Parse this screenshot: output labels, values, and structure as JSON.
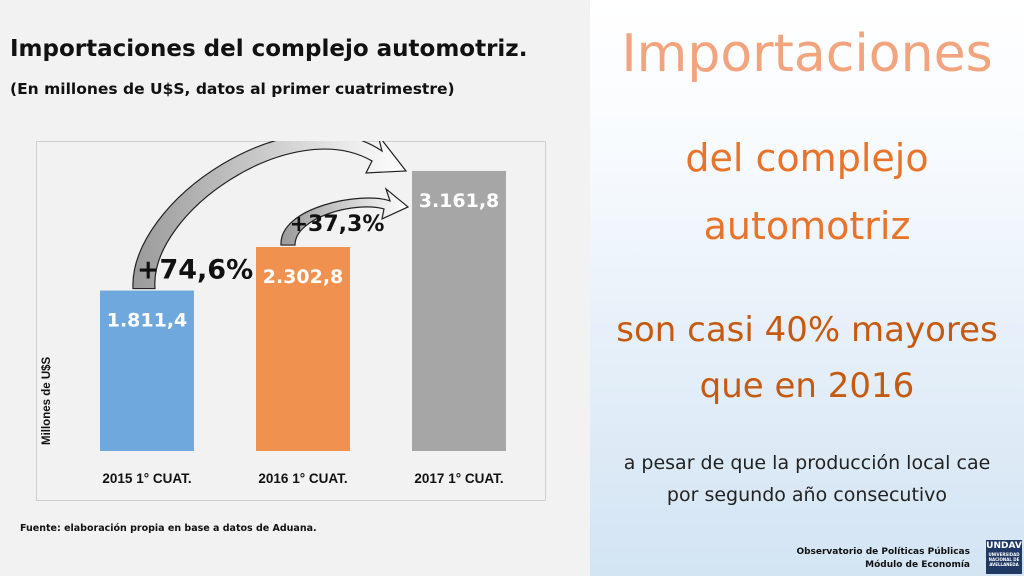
{
  "left": {
    "title": "Importaciones del complejo automotriz.",
    "subtitle": "(En millones de U$S, datos al primer cuatrimestre)",
    "source": "Fuente: elaboración propia en base a datos de Aduana."
  },
  "chart_data": {
    "type": "bar",
    "categories": [
      "2015 1° CUAT.",
      "2016 1° CUAT.",
      "2017 1° CUAT."
    ],
    "values": [
      1811.4,
      2302.8,
      3161.8
    ],
    "value_labels": [
      "1.811,4",
      "2.302,8",
      "3.161,8"
    ],
    "colors": [
      "#6fa8dc",
      "#f0914f",
      "#a6a6a6"
    ],
    "ylabel": "Millones de U$S",
    "ylim": [
      0,
      3500
    ],
    "grid": false,
    "annotations": [
      {
        "text": "+74,6%",
        "from": 0,
        "to": 2
      },
      {
        "text": "+37,3%",
        "from": 1,
        "to": 2
      }
    ]
  },
  "right": {
    "line1": "Importaciones",
    "line2": "del complejo",
    "line3": "automotriz",
    "line4": "son casi 40% mayores",
    "line5": "que en 2016",
    "line6": "a pesar de que la producción local cae",
    "line7": "por segundo año consecutivo"
  },
  "footer": {
    "observatorio": "Observatorio de Políticas Públicas",
    "modulo": "Módulo de Economía",
    "logo_text": "UNDAV",
    "logo_sub": "UNIVERSIDAD NACIONAL DE AVELLANEDA"
  }
}
